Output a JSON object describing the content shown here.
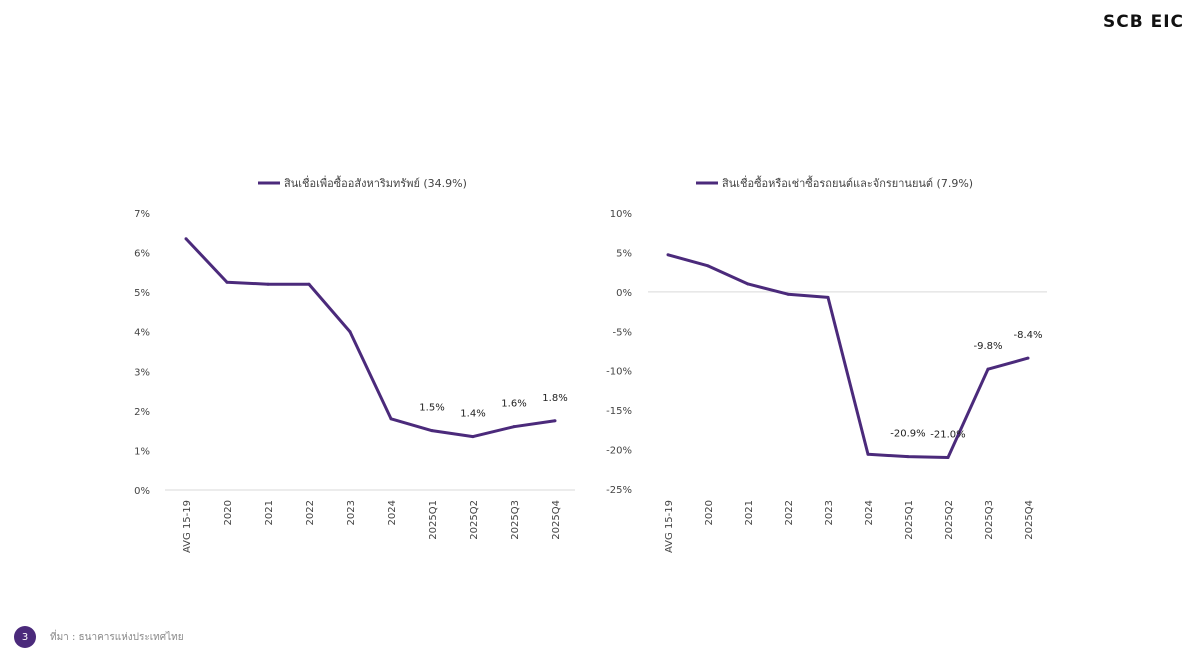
{
  "logo": "SCB EIC",
  "footer": {
    "page": "3",
    "source": "ที่มา : ธนาคารแห่งประเทศไทย"
  },
  "colors": {
    "line": "#4b2a7b",
    "axis": "#d9d9d9",
    "text": "#444444"
  },
  "chart_data": [
    {
      "type": "line",
      "legend": "สินเชื่อเพื่อซื้ออสังหาริมทรัพย์ (34.9%)",
      "legend_position": "top",
      "categories": [
        "AVG 15-19",
        "2020",
        "2021",
        "2022",
        "2023",
        "2024",
        "2025Q1",
        "2025Q2",
        "2025Q3",
        "2025Q4"
      ],
      "values": [
        6.35,
        5.25,
        5.2,
        5.2,
        4.0,
        1.8,
        1.5,
        1.35,
        1.6,
        1.75
      ],
      "data_labels": [
        null,
        null,
        null,
        null,
        null,
        null,
        "1.5%",
        "1.4%",
        "1.6%",
        "1.8%"
      ],
      "yticks": [
        "0%",
        "1%",
        "2%",
        "3%",
        "4%",
        "5%",
        "6%",
        "7%"
      ],
      "ylim": [
        0,
        7
      ],
      "grid": false
    },
    {
      "type": "line",
      "legend": "สินเชื่อซื้อหรือเช่าซื้อรถยนต์และจักรยานยนต์ (7.9%)",
      "legend_position": "top",
      "categories": [
        "AVG 15-19",
        "2020",
        "2021",
        "2022",
        "2023",
        "2024",
        "2025Q1",
        "2025Q2",
        "2025Q3",
        "2025Q4"
      ],
      "values": [
        4.7,
        3.3,
        1.0,
        -0.3,
        -0.7,
        -20.6,
        -20.9,
        -21.0,
        -9.8,
        -8.4
      ],
      "data_labels": [
        null,
        null,
        null,
        null,
        null,
        null,
        "-20.9%",
        "-21.0%",
        "-9.8%",
        "-8.4%"
      ],
      "yticks": [
        "-25%",
        "-20%",
        "-15%",
        "-10%",
        "-5%",
        "0%",
        "5%",
        "10%"
      ],
      "ylim": [
        -25,
        10
      ],
      "grid": false
    }
  ]
}
